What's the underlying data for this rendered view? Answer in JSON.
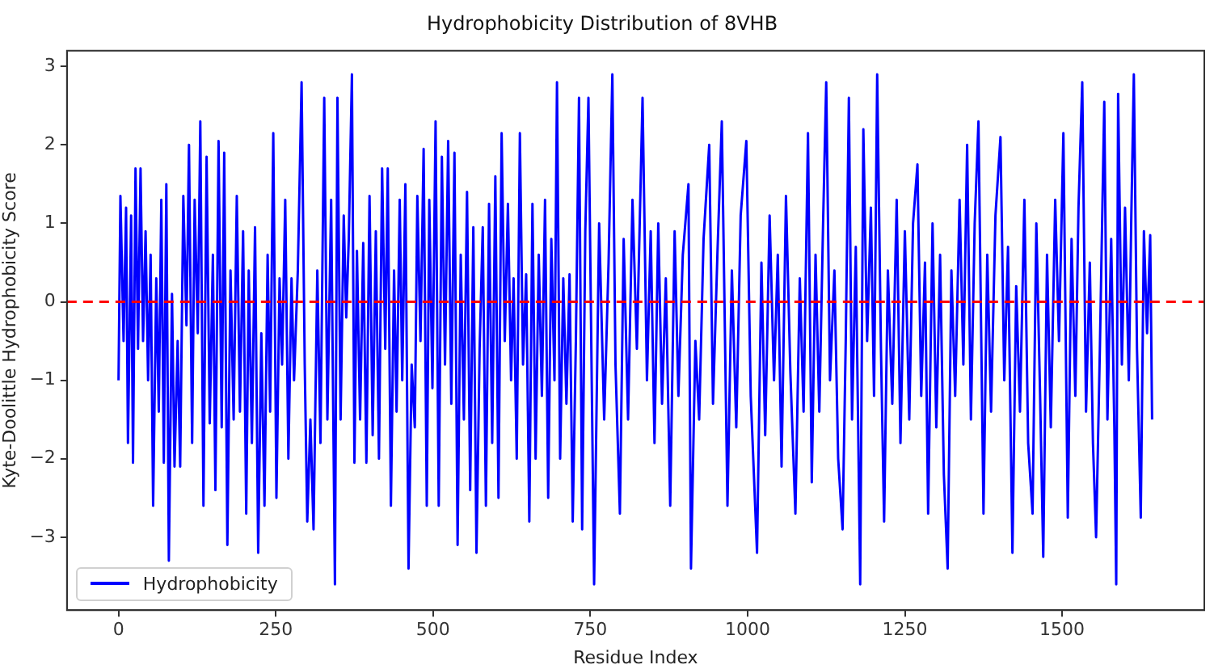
{
  "chart_data": {
    "type": "line",
    "title": "Hydrophobicity Distribution of 8VHB",
    "xlabel": "Residue Index",
    "ylabel": "Kyte-Doolittle Hydrophobicity Score",
    "xlim": [
      -82,
      1726
    ],
    "xticks": [
      0,
      250,
      500,
      750,
      1000,
      1250,
      1500
    ],
    "ylim": [
      -3.93,
      3.2
    ],
    "yticks": [
      {
        "value": -3,
        "label": "−3"
      },
      {
        "value": -2,
        "label": "−2"
      },
      {
        "value": -1,
        "label": "−1"
      },
      0,
      1,
      2,
      3
    ],
    "grid": false,
    "legend": "bottom left",
    "marker": "none",
    "line_style": "solid",
    "ref_lines": [
      {
        "axis": "y",
        "value": 0,
        "color": "#ff0000",
        "line_style": "dashed"
      }
    ],
    "series": [
      {
        "name": "Hydrophobicity",
        "color": "#0000ff",
        "x": [
          0,
          3,
          8,
          12,
          15,
          20,
          23,
          27,
          31,
          35,
          39,
          43,
          47,
          51,
          55,
          60,
          64,
          68,
          72,
          76,
          80,
          85,
          89,
          94,
          98,
          103,
          108,
          112,
          117,
          121,
          126,
          130,
          135,
          140,
          145,
          150,
          154,
          159,
          164,
          168,
          173,
          178,
          183,
          188,
          193,
          198,
          203,
          207,
          212,
          217,
          222,
          227,
          232,
          237,
          241,
          246,
          251,
          256,
          260,
          265,
          270,
          275,
          279,
          285,
          291,
          296,
          300,
          305,
          310,
          316,
          321,
          327,
          332,
          338,
          344,
          348,
          353,
          358,
          362,
          366,
          371,
          375,
          379,
          384,
          389,
          394,
          399,
          404,
          409,
          414,
          419,
          424,
          428,
          433,
          438,
          442,
          447,
          451,
          456,
          461,
          466,
          471,
          475,
          480,
          485,
          490,
          494,
          499,
          504,
          509,
          514,
          519,
          524,
          529,
          534,
          539,
          544,
          549,
          554,
          559,
          564,
          569,
          574,
          579,
          584,
          589,
          594,
          599,
          604,
          609,
          614,
          619,
          624,
          628,
          633,
          638,
          643,
          648,
          653,
          658,
          663,
          668,
          673,
          678,
          683,
          688,
          693,
          697,
          702,
          707,
          712,
          717,
          722,
          727,
          732,
          737,
          742,
          747,
          756,
          764,
          772,
          779,
          785,
          790,
          797,
          803,
          810,
          817,
          824,
          833,
          840,
          846,
          852,
          858,
          864,
          870,
          877,
          884,
          890,
          897,
          906,
          910,
          917,
          923,
          930,
          939,
          945,
          952,
          959,
          968,
          975,
          982,
          989,
          998,
          1005,
          1015,
          1022,
          1028,
          1035,
          1042,
          1048,
          1054,
          1061,
          1068,
          1076,
          1083,
          1089,
          1096,
          1102,
          1108,
          1114,
          1120,
          1125,
          1131,
          1138,
          1144,
          1151,
          1156,
          1161,
          1166,
          1172,
          1179,
          1184,
          1190,
          1196,
          1201,
          1206,
          1212,
          1217,
          1223,
          1230,
          1237,
          1243,
          1250,
          1257,
          1263,
          1270,
          1276,
          1282,
          1287,
          1294,
          1300,
          1306,
          1312,
          1318,
          1324,
          1330,
          1337,
          1343,
          1349,
          1355,
          1361,
          1367,
          1375,
          1381,
          1387,
          1394,
          1402,
          1408,
          1414,
          1421,
          1427,
          1433,
          1440,
          1446,
          1453,
          1459,
          1465,
          1470,
          1476,
          1482,
          1489,
          1495,
          1502,
          1509,
          1515,
          1521,
          1526,
          1532,
          1538,
          1544,
          1549,
          1554,
          1560,
          1567,
          1572,
          1578,
          1583,
          1586,
          1589,
          1595,
          1600,
          1606,
          1610,
          1614,
          1619,
          1625,
          1630,
          1635,
          1640,
          1643
        ],
        "values": [
          -1.0,
          1.35,
          -0.5,
          1.2,
          -1.8,
          1.1,
          -2.05,
          1.7,
          -0.6,
          1.7,
          -0.5,
          0.9,
          -1.0,
          0.6,
          -2.6,
          0.3,
          -1.4,
          1.3,
          -2.05,
          1.5,
          -3.3,
          0.1,
          -2.1,
          -0.5,
          -2.1,
          1.35,
          -0.3,
          2.0,
          -1.8,
          1.3,
          -0.4,
          2.3,
          -2.6,
          1.85,
          -1.55,
          0.6,
          -2.4,
          2.05,
          -1.6,
          1.9,
          -3.1,
          0.4,
          -1.5,
          1.35,
          -1.4,
          0.9,
          -2.7,
          0.4,
          -1.8,
          0.95,
          -3.2,
          -0.4,
          -2.6,
          0.6,
          -1.4,
          2.15,
          -2.5,
          0.3,
          -0.8,
          1.3,
          -2.0,
          0.3,
          -1.0,
          0.4,
          2.8,
          -0.8,
          -2.8,
          -1.5,
          -2.9,
          0.4,
          -1.8,
          2.6,
          -1.5,
          1.3,
          -3.6,
          2.6,
          -1.5,
          1.1,
          -0.2,
          0.8,
          2.9,
          -2.05,
          0.65,
          -1.5,
          0.75,
          -2.05,
          1.35,
          -1.7,
          0.9,
          -2.0,
          1.7,
          -0.6,
          1.7,
          -2.6,
          0.4,
          -1.4,
          1.3,
          -1.0,
          1.5,
          -3.4,
          -0.8,
          -1.6,
          1.35,
          -0.5,
          1.95,
          -2.6,
          1.3,
          -1.1,
          2.3,
          -2.6,
          1.85,
          -0.8,
          2.05,
          -1.3,
          1.9,
          -3.1,
          0.6,
          -1.5,
          1.4,
          -2.4,
          0.95,
          -3.2,
          -0.6,
          0.95,
          -2.6,
          1.25,
          -1.8,
          1.6,
          -2.5,
          2.15,
          -0.5,
          1.25,
          -1.0,
          0.3,
          -2.0,
          2.15,
          -0.8,
          0.35,
          -2.8,
          1.25,
          -2.0,
          0.6,
          -1.2,
          1.3,
          -2.5,
          0.8,
          -1.0,
          2.8,
          -2.0,
          0.3,
          -1.3,
          0.35,
          -2.8,
          -0.5,
          2.6,
          -2.9,
          0.9,
          2.6,
          -3.6,
          1.0,
          -1.5,
          0.5,
          2.9,
          -0.8,
          -2.7,
          0.8,
          -1.5,
          1.3,
          -0.6,
          2.6,
          -1.0,
          0.9,
          -1.8,
          1.0,
          -1.3,
          0.3,
          -2.6,
          0.9,
          -1.2,
          0.6,
          1.5,
          -3.4,
          -0.5,
          -1.5,
          0.8,
          2.0,
          -1.3,
          0.6,
          2.3,
          -2.6,
          0.4,
          -1.6,
          1.1,
          2.05,
          -1.2,
          -3.2,
          0.5,
          -1.7,
          1.1,
          -1.0,
          0.6,
          -2.1,
          1.35,
          -0.9,
          -2.7,
          0.3,
          -1.4,
          2.15,
          -2.3,
          0.6,
          -1.4,
          1.0,
          2.8,
          -1.0,
          0.4,
          -2.0,
          -2.9,
          -0.5,
          2.6,
          -1.5,
          0.7,
          -3.6,
          2.2,
          -0.5,
          1.2,
          -1.2,
          2.9,
          -0.6,
          -2.8,
          0.4,
          -1.3,
          1.3,
          -1.8,
          0.9,
          -1.5,
          1.0,
          1.75,
          -1.2,
          0.5,
          -2.7,
          1.0,
          -1.6,
          0.6,
          -2.2,
          -3.4,
          0.4,
          -1.2,
          1.3,
          -0.8,
          2.0,
          -1.5,
          1.0,
          2.3,
          -2.7,
          0.6,
          -1.4,
          1.1,
          2.1,
          -1.0,
          0.7,
          -3.2,
          0.2,
          -1.4,
          1.3,
          -1.8,
          -2.7,
          1.0,
          -1.2,
          -3.25,
          0.6,
          -1.6,
          1.3,
          -0.5,
          2.15,
          -2.75,
          0.8,
          -1.2,
          1.2,
          2.8,
          -1.4,
          0.5,
          -1.8,
          -3.0,
          -0.6,
          2.55,
          -1.5,
          0.8,
          -1.6,
          -3.6,
          2.65,
          -0.8,
          1.2,
          -1.0,
          1.1,
          2.9,
          -0.6,
          -2.75,
          0.9,
          -0.4,
          0.85,
          -1.5
        ]
      }
    ]
  }
}
